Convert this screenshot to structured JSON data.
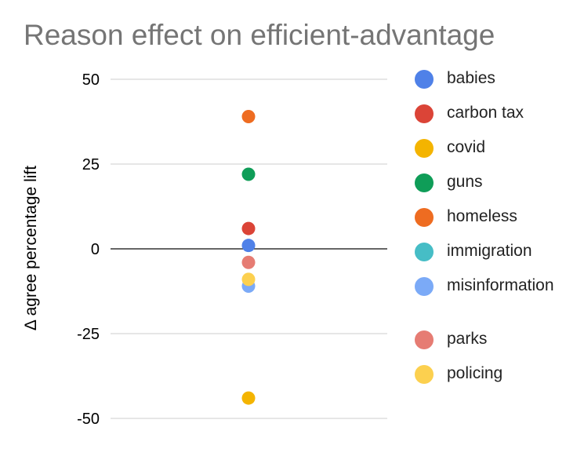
{
  "chart_data": {
    "type": "scatter",
    "title": "Reason effect on efficient-advantage",
    "ylabel": "Δ agree percentage lift",
    "ylim": [
      -50,
      50
    ],
    "yticks": [
      50,
      25,
      0,
      -25,
      -50
    ],
    "ytick_labels": [
      "50",
      "25",
      "0",
      "-25",
      "-50"
    ],
    "grid": true,
    "legend_position": "right",
    "series": [
      {
        "name": "babies",
        "color": "#4f81e8",
        "y": 1
      },
      {
        "name": "carbon tax",
        "color": "#db4437",
        "y": 6
      },
      {
        "name": "covid",
        "color": "#f4b400",
        "y": -44
      },
      {
        "name": "guns",
        "color": "#0f9d58",
        "y": 22
      },
      {
        "name": "homeless",
        "color": "#ee6c21",
        "y": 39
      },
      {
        "name": "immigration",
        "color": "#46bdc6",
        "y": null
      },
      {
        "name": "misinformation",
        "color": "#7baaf7",
        "y": -11
      },
      {
        "name": "parks",
        "color": "#e67c73",
        "y": -4
      },
      {
        "name": "policing",
        "color": "#fcd04f",
        "y": -9
      }
    ]
  }
}
